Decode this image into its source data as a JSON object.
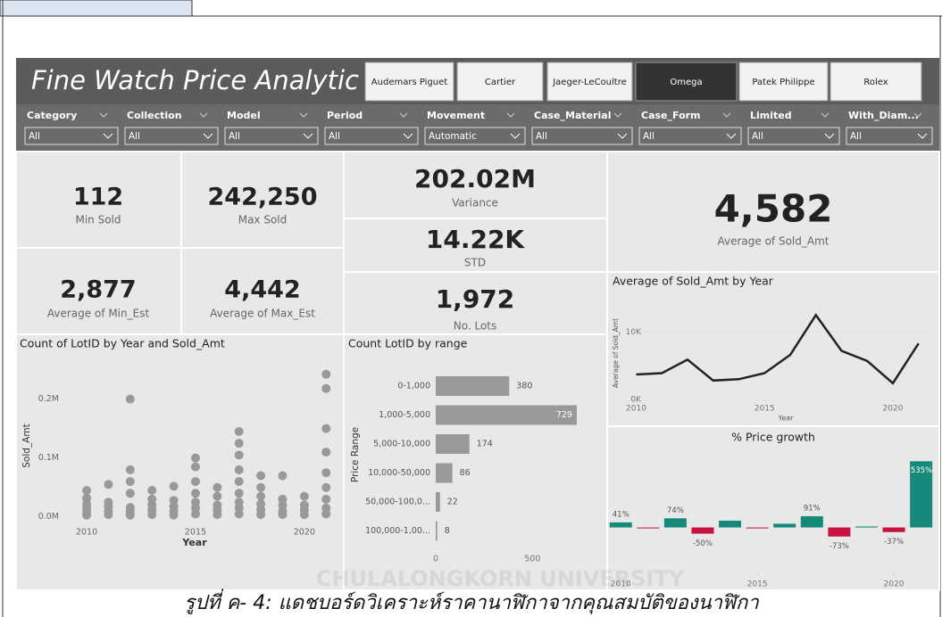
{
  "header": {
    "title": "Fine Watch Price Analytic",
    "brands": [
      {
        "label": "Audemars Piguet",
        "selected": false
      },
      {
        "label": "Cartier",
        "selected": false
      },
      {
        "label": "Jaeger-LeCoultre",
        "selected": false
      },
      {
        "label": "Omega",
        "selected": true
      },
      {
        "label": "Patek Philippe",
        "selected": false
      },
      {
        "label": "Rolex",
        "selected": false
      }
    ]
  },
  "filters": [
    {
      "label": "Category",
      "value": "All"
    },
    {
      "label": "Collection",
      "value": "All"
    },
    {
      "label": "Model",
      "value": "All"
    },
    {
      "label": "Period",
      "value": "All"
    },
    {
      "label": "Movement",
      "value": "Automatic"
    },
    {
      "label": "Case_Material",
      "value": "All"
    },
    {
      "label": "Case_Form",
      "value": "All"
    },
    {
      "label": "Limited",
      "value": "All"
    },
    {
      "label": "With_Diam...",
      "value": "All"
    }
  ],
  "cards": [
    {
      "value": "112",
      "label": "Min Sold"
    },
    {
      "value": "242,250",
      "label": "Max Sold"
    },
    {
      "value": "2,877",
      "label": "Average of Min_Est"
    },
    {
      "value": "4,442",
      "label": "Average of Max_Est"
    },
    {
      "value": "202.02M",
      "label": "Variance"
    },
    {
      "value": "14.22K",
      "label": "STD"
    },
    {
      "value": "1,972",
      "label": "No. Lots"
    },
    {
      "value": "4,582",
      "label": "Average of Sold_Amt"
    }
  ],
  "chart_data": [
    {
      "type": "scatter",
      "title": "Count of LotID by Year and Sold_Amt",
      "x_label": "Year",
      "y_label": "Sold_Amt",
      "color": "#999999",
      "x": [
        2010,
        2010,
        2010,
        2010,
        2010,
        2010,
        2011,
        2011,
        2011,
        2011,
        2011,
        2012,
        2012,
        2012,
        2012,
        2012,
        2012,
        2012,
        2013,
        2013,
        2013,
        2013,
        2013,
        2014,
        2014,
        2014,
        2014,
        2014,
        2015,
        2015,
        2015,
        2015,
        2015,
        2015,
        2015,
        2016,
        2016,
        2016,
        2016,
        2016,
        2017,
        2017,
        2017,
        2017,
        2017,
        2017,
        2017,
        2017,
        2017,
        2018,
        2018,
        2018,
        2018,
        2018,
        2018,
        2019,
        2019,
        2019,
        2019,
        2019,
        2020,
        2020,
        2020,
        2020,
        2021,
        2021,
        2021,
        2021,
        2021,
        2021,
        2021,
        2021,
        2021
      ],
      "values": [
        3000,
        8000,
        15000,
        22000,
        32000,
        45000,
        4000,
        10000,
        18000,
        25000,
        55000,
        3000,
        9000,
        16000,
        40000,
        60000,
        80000,
        200000,
        4000,
        12000,
        20000,
        30000,
        45000,
        3000,
        10000,
        18000,
        28000,
        52000,
        5000,
        15000,
        25000,
        40000,
        60000,
        85000,
        100000,
        4000,
        12000,
        20000,
        35000,
        50000,
        5000,
        15000,
        25000,
        40000,
        60000,
        80000,
        105000,
        125000,
        145000,
        4000,
        12000,
        22000,
        35000,
        50000,
        70000,
        4000,
        10000,
        20000,
        30000,
        70000,
        4000,
        12000,
        20000,
        35000,
        5000,
        15000,
        30000,
        50000,
        75000,
        110000,
        150000,
        218000,
        242250
      ],
      "xlim": [
        2009.3,
        2021.4
      ],
      "xticks": [
        2010,
        2015,
        2020
      ],
      "ylim": [
        -8000,
        260000
      ],
      "yticks": [
        {
          "value": 0,
          "label": "0.0M"
        },
        {
          "value": 100000,
          "label": "0.1M"
        },
        {
          "value": 200000,
          "label": "0.2M"
        }
      ]
    },
    {
      "type": "hbar",
      "title": "Count LotID by range",
      "y_label": "Price Range",
      "color": "#999999",
      "categories": [
        "0-1,000",
        "1,000-5,000",
        "5,000-10,000",
        "10,000-50,000",
        "50,000-100,0...",
        "100,000-1,00..."
      ],
      "values": [
        380,
        729,
        174,
        86,
        22,
        8
      ],
      "xlim": [
        0,
        840
      ],
      "xticks": [
        0,
        500
      ]
    },
    {
      "type": "line",
      "title": "Average of Sold_Amt by Year",
      "x_label": "Year",
      "y_label": "Average of Sold_Amt",
      "color": "#222222",
      "grid": true,
      "x": [
        2010,
        2011,
        2012,
        2013,
        2014,
        2015,
        2016,
        2017,
        2018,
        2019,
        2020,
        2021
      ],
      "values": [
        3700,
        3900,
        5900,
        2800,
        3000,
        3900,
        6600,
        12500,
        7200,
        5700,
        2400,
        8300
      ],
      "xlim": [
        2009.6,
        2021.6
      ],
      "xticks": [
        2010,
        2015,
        2020
      ],
      "ylim": [
        0,
        14000
      ],
      "yticks": [
        {
          "value": 0,
          "label": "0K"
        },
        {
          "value": 10000,
          "label": "10K"
        }
      ]
    },
    {
      "type": "bar",
      "title": "% Price growth",
      "positive_color": "#168a7a",
      "negative_color": "#c8123f",
      "x": [
        2010,
        2011,
        2012,
        2013,
        2014,
        2015,
        2016,
        2017,
        2018,
        2019,
        2020,
        2021
      ],
      "values": [
        41,
        -5,
        74,
        -50,
        55,
        -4,
        30,
        91,
        -73,
        8,
        -37,
        535
      ],
      "value_labels": [
        "41%",
        null,
        "74%",
        "-50%",
        null,
        null,
        null,
        "91%",
        "-73%",
        null,
        "-37%",
        "535%"
      ],
      "xlim": [
        2009.6,
        2021.6
      ],
      "xticks": [
        2010,
        2015,
        2020
      ],
      "ylim": [
        -320,
        660
      ]
    }
  ],
  "watermark": "CHULALONGKORN UNIVERSITY",
  "caption": "รูปที่ ค- 4: แดชบอร์ดวิเคราะห์ราคานาฬิกาจากคุณสมบัติของนาฬิกา"
}
